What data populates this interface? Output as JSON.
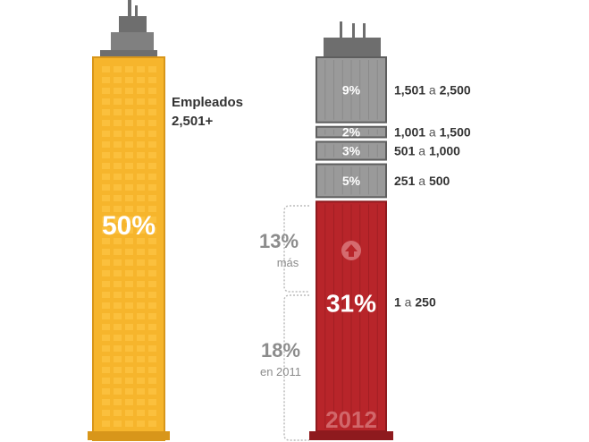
{
  "colors": {
    "yellow": "#F6B52C",
    "yellow_edge": "#D8961A",
    "gray_roof": "#6E6E6E",
    "gray_body": "#9A9A9A",
    "gray_edge": "#5E5E5E",
    "red": "#B8252A",
    "red_edge": "#8E1A1E",
    "annotation": "#8C8C8C",
    "text": "#333333"
  },
  "chart_data": {
    "type": "bar",
    "left_building": {
      "label_line1": "Empleados",
      "label_line2": "2,501+",
      "value": 50,
      "value_label": "50%"
    },
    "right_building": {
      "year_label": "2012",
      "segments": [
        {
          "range_from": "1,501",
          "connector": "a",
          "range_to": "2,500",
          "value": 9,
          "value_label": "9%"
        },
        {
          "range_from": "1,001",
          "connector": "a",
          "range_to": "1,500",
          "value": 2,
          "value_label": "2%"
        },
        {
          "range_from": "501",
          "connector": "a",
          "range_to": "1,000",
          "value": 3,
          "value_label": "3%"
        },
        {
          "range_from": "251",
          "connector": "a",
          "range_to": "500",
          "value": 5,
          "value_label": "5%"
        },
        {
          "range_from": "1",
          "connector": "a",
          "range_to": "250",
          "value": 31,
          "value_label": "31%"
        }
      ]
    },
    "annotations": {
      "increase_value": "13%",
      "increase_label": "más",
      "previous_value": "18%",
      "previous_label": "en 2011"
    }
  }
}
